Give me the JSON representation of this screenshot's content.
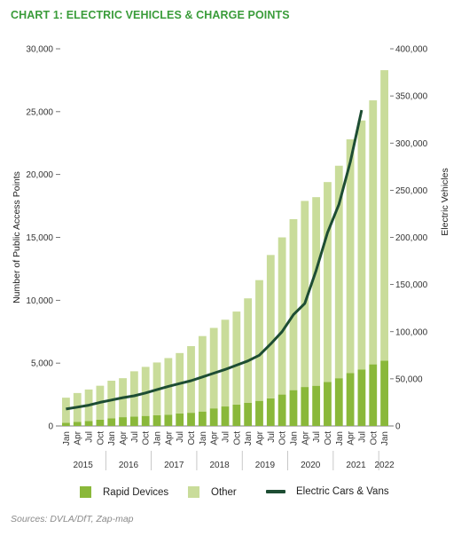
{
  "title": "CHART 1: ELECTRIC VEHICLES & CHARGE POINTS",
  "colors": {
    "title": "#3a9c3a",
    "rapid": "#8ab83a",
    "other": "#c9dc9a",
    "line": "#1d4d33",
    "axis": "#555555"
  },
  "chart_data": {
    "type": "bar",
    "stacked": true,
    "categories": [
      "Jan",
      "Apr",
      "Jul",
      "Oct",
      "Jan",
      "Apr",
      "Jul",
      "Oct",
      "Jan",
      "Apr",
      "Jul",
      "Oct",
      "Jan",
      "Apr",
      "Jul",
      "Oct",
      "Jan",
      "Apr",
      "Jul",
      "Oct",
      "Jan",
      "Apr",
      "Jul",
      "Oct",
      "Jan",
      "Apr",
      "Jul",
      "Oct",
      "Jan"
    ],
    "years": [
      {
        "label": "2015",
        "start": 0,
        "end": 3
      },
      {
        "label": "2016",
        "start": 4,
        "end": 7
      },
      {
        "label": "2017",
        "start": 8,
        "end": 11
      },
      {
        "label": "2018",
        "start": 12,
        "end": 15
      },
      {
        "label": "2019",
        "start": 16,
        "end": 19
      },
      {
        "label": "2020",
        "start": 20,
        "end": 23
      },
      {
        "label": "2021",
        "start": 24,
        "end": 27
      },
      {
        "label": "2022",
        "start": 28,
        "end": 28
      }
    ],
    "series": [
      {
        "name": "Rapid Devices",
        "axis": "left",
        "values": [
          250,
          320,
          400,
          500,
          600,
          700,
          750,
          800,
          850,
          900,
          1000,
          1050,
          1150,
          1400,
          1550,
          1700,
          1850,
          2000,
          2200,
          2500,
          2850,
          3100,
          3200,
          3500,
          3800,
          4200,
          4500,
          4900,
          5200
        ]
      },
      {
        "name": "Other",
        "axis": "left",
        "values": [
          2000,
          2300,
          2500,
          2700,
          3000,
          3100,
          3600,
          3900,
          4200,
          4500,
          4800,
          5300,
          6000,
          6400,
          6900,
          7400,
          8300,
          9600,
          11400,
          12500,
          13600,
          14800,
          15000,
          15900,
          16900,
          18600,
          19800,
          21000,
          23100
        ]
      },
      {
        "name": "Electric Cars & Vans",
        "axis": "right",
        "type": "line",
        "values": [
          18000,
          20000,
          22000,
          25000,
          27500,
          30000,
          32000,
          35000,
          38500,
          42000,
          45000,
          48000,
          52000,
          56000,
          60000,
          64500,
          69000,
          75000,
          87000,
          100000,
          118000,
          130000,
          165000,
          205000,
          235000,
          280000,
          335000,
          null,
          null
        ]
      }
    ],
    "left_axis": {
      "label": "Number of Public Access Points",
      "ylim": [
        0,
        30000
      ],
      "ticks": [
        "0",
        "5,000",
        "10,000",
        "15,000",
        "20,000",
        "25,000",
        "30,000"
      ]
    },
    "right_axis": {
      "label": "Electric Vehicles",
      "ylim": [
        0,
        400000
      ],
      "ticks": [
        "0",
        "50,000",
        "100,000",
        "150,000",
        "200,000",
        "250,000",
        "300,000",
        "350,000",
        "400,000"
      ]
    },
    "grid": false,
    "legend_position": "bottom"
  },
  "legend": [
    {
      "label": "Rapid Devices"
    },
    {
      "label": "Other"
    },
    {
      "label": "Electric Cars & Vans"
    }
  ],
  "source": "Sources: DVLA/DfT, Zap-map"
}
